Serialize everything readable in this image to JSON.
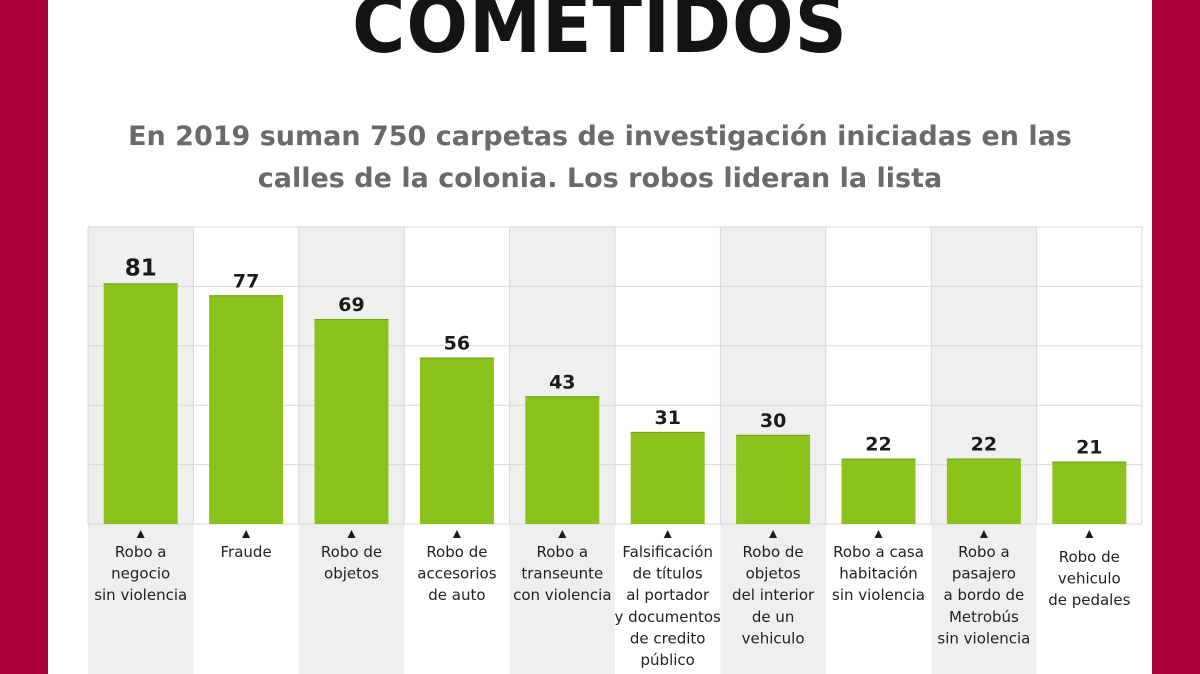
{
  "header": {
    "title": "COMETIDOS",
    "subtitle_lines": [
      "En 2019 suman 750 carpetas de investigación iniciadas en las",
      "calles de la colonia. Los robos lideran la lista"
    ]
  },
  "colors": {
    "background": "#ab0037",
    "bar": "#8cc21c",
    "shaded_column": "#efefef",
    "grid": "#d9d9d9"
  },
  "chart_data": {
    "type": "bar",
    "title": "",
    "xlabel": "",
    "ylabel": "",
    "ylim": [
      0,
      100
    ],
    "grid": true,
    "categories": [
      [
        "Robo a",
        "negocio",
        "sin violencia"
      ],
      [
        "Fraude"
      ],
      [
        "Robo de",
        "objetos"
      ],
      [
        "Robo de",
        "accesorios",
        "de auto"
      ],
      [
        "Robo a",
        "transeunte",
        "con violencia"
      ],
      [
        "Falsificación",
        "de títulos",
        "al portador",
        "y documentos",
        "de credito",
        "público"
      ],
      [
        "Robo de",
        "objetos",
        "del interior",
        "de un",
        "vehiculo"
      ],
      [
        "Robo a casa",
        "habitación",
        "sin violencia"
      ],
      [
        "Robo a",
        "pasajero",
        "a bordo de",
        "Metrobús",
        "sin violencia"
      ],
      [
        "Robo de",
        "vehiculo",
        "de pedales"
      ]
    ],
    "values": [
      81,
      77,
      69,
      56,
      43,
      31,
      30,
      22,
      22,
      21
    ]
  }
}
